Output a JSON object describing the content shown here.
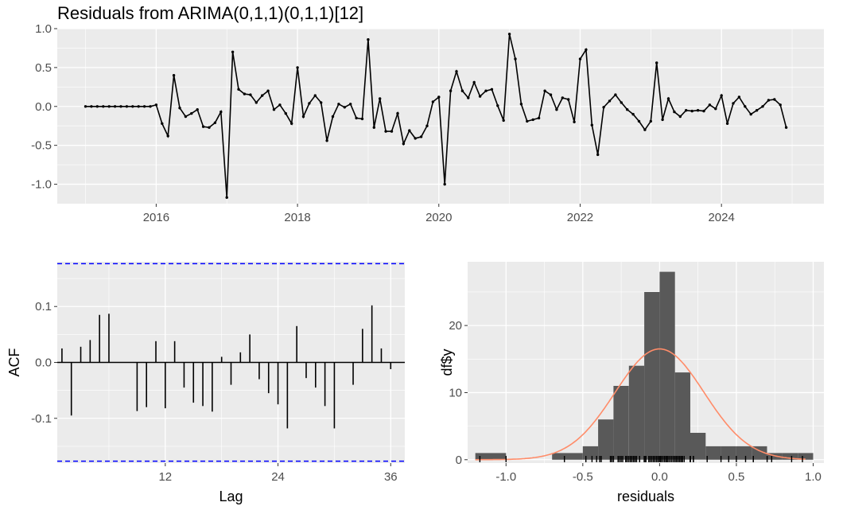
{
  "title": "Residuals from ARIMA(0,1,1)(0,1,1)[12]",
  "colors": {
    "panel": "#EBEBEB",
    "grid": "#FFFFFF",
    "line": "#000000",
    "ci": "#0000FF",
    "bar": "#595959",
    "density": "#FF8C69",
    "axis_text": "#4D4D4D"
  },
  "chart_data": [
    {
      "type": "line",
      "title": "Residuals from ARIMA(0,1,1)(0,1,1)[12]",
      "xlabel": "",
      "ylabel": "",
      "xlim": [
        2014.6,
        2025.45
      ],
      "ylim": [
        -1.25,
        1.0
      ],
      "x_ticks": [
        2016,
        2018,
        2020,
        2022,
        2024
      ],
      "y_ticks": [
        -1.0,
        -0.5,
        0.0,
        0.5,
        1.0
      ],
      "y_tick_labels": [
        "-1.0",
        "-0.5",
        "0.0",
        "0.5",
        "1.0"
      ],
      "x_start": 2015.0,
      "frequency": 12,
      "values": [
        0,
        0,
        0,
        0,
        0,
        0,
        0,
        0,
        0,
        0,
        0,
        0,
        0.02,
        -0.22,
        -0.38,
        0.4,
        -0.02,
        -0.13,
        -0.09,
        -0.04,
        -0.26,
        -0.27,
        -0.21,
        -0.07,
        -1.17,
        0.7,
        0.22,
        0.16,
        0.15,
        0.05,
        0.14,
        0.2,
        -0.04,
        0.02,
        -0.09,
        -0.22,
        0.5,
        -0.13,
        0.04,
        0.14,
        0.05,
        -0.44,
        -0.13,
        0.03,
        -0.01,
        0.03,
        -0.15,
        -0.16,
        0.86,
        -0.27,
        0.1,
        -0.32,
        -0.32,
        -0.09,
        -0.48,
        -0.31,
        -0.41,
        -0.39,
        -0.25,
        0.06,
        0.12,
        -1.0,
        0.2,
        0.45,
        0.2,
        0.11,
        0.31,
        0.13,
        0.2,
        0.22,
        0.01,
        -0.18,
        0.93,
        0.61,
        0.03,
        -0.19,
        -0.17,
        -0.15,
        0.2,
        0.15,
        -0.04,
        0.11,
        0.09,
        -0.2,
        0.61,
        0.73,
        -0.24,
        -0.62,
        -0.01,
        0.07,
        0.15,
        0.05,
        -0.04,
        -0.1,
        -0.19,
        -0.3,
        -0.19,
        0.56,
        -0.17,
        0.1,
        -0.07,
        -0.13,
        -0.05,
        -0.06,
        -0.05,
        -0.06,
        0.02,
        -0.03,
        0.14,
        -0.22,
        0.04,
        0.12,
        0.0,
        -0.1,
        -0.05,
        0.0,
        0.08,
        0.09,
        0.02,
        -0.27
      ]
    },
    {
      "type": "bar",
      "subtype": "acf",
      "xlabel": "Lag",
      "ylabel": "ACF",
      "x_ticks": [
        12,
        24,
        36
      ],
      "xlim": [
        0.5,
        37.5
      ],
      "ylim": [
        -0.18,
        0.18
      ],
      "y_ticks": [
        -0.1,
        0.0,
        0.1
      ],
      "y_tick_labels": [
        "-0.1",
        "0.0",
        "0.1"
      ],
      "ci": 0.1766,
      "lags": [
        1,
        2,
        3,
        4,
        5,
        6,
        7,
        8,
        9,
        10,
        11,
        12,
        13,
        14,
        15,
        16,
        17,
        18,
        19,
        20,
        21,
        22,
        23,
        24,
        25,
        26,
        27,
        28,
        29,
        30,
        31,
        32,
        33,
        34,
        35,
        36
      ],
      "values": [
        0.025,
        -0.095,
        0.028,
        0.04,
        0.085,
        0.087,
        0.0,
        0.0,
        -0.087,
        -0.08,
        0.038,
        -0.082,
        0.038,
        -0.045,
        -0.072,
        -0.078,
        -0.088,
        0.01,
        -0.04,
        0.018,
        0.05,
        -0.03,
        -0.055,
        -0.075,
        -0.118,
        0.065,
        -0.028,
        -0.045,
        -0.078,
        -0.118,
        0.0,
        -0.04,
        0.06,
        0.102,
        0.025,
        -0.012
      ]
    },
    {
      "type": "bar",
      "subtype": "histogram",
      "xlabel": "residuals",
      "ylabel": "df$y",
      "xlim": [
        -1.25,
        1.07
      ],
      "ylim": [
        -0.5,
        29.5
      ],
      "x_ticks": [
        -1.0,
        -0.5,
        0.0,
        0.5,
        1.0
      ],
      "x_tick_labels": [
        "-1.0",
        "-0.5",
        "0.0",
        "0.5",
        "1.0"
      ],
      "y_ticks": [
        0,
        10,
        20
      ],
      "bins": [
        {
          "start": -1.2,
          "end": -1.1,
          "count": 1
        },
        {
          "start": -1.1,
          "end": -1.0,
          "count": 1
        },
        {
          "start": -1.0,
          "end": -0.9,
          "count": 0
        },
        {
          "start": -0.9,
          "end": -0.8,
          "count": 0
        },
        {
          "start": -0.8,
          "end": -0.7,
          "count": 0
        },
        {
          "start": -0.7,
          "end": -0.6,
          "count": 1
        },
        {
          "start": -0.6,
          "end": -0.5,
          "count": 1
        },
        {
          "start": -0.5,
          "end": -0.4,
          "count": 2
        },
        {
          "start": -0.4,
          "end": -0.3,
          "count": 6
        },
        {
          "start": -0.3,
          "end": -0.2,
          "count": 11
        },
        {
          "start": -0.2,
          "end": -0.1,
          "count": 14
        },
        {
          "start": -0.1,
          "end": 0.0,
          "count": 25
        },
        {
          "start": 0.0,
          "end": 0.1,
          "count": 28
        },
        {
          "start": 0.1,
          "end": 0.2,
          "count": 13
        },
        {
          "start": 0.2,
          "end": 0.3,
          "count": 4
        },
        {
          "start": 0.3,
          "end": 0.4,
          "count": 2
        },
        {
          "start": 0.4,
          "end": 0.5,
          "count": 2
        },
        {
          "start": 0.5,
          "end": 0.6,
          "count": 2
        },
        {
          "start": 0.6,
          "end": 0.7,
          "count": 2
        },
        {
          "start": 0.7,
          "end": 0.8,
          "count": 1
        },
        {
          "start": 0.8,
          "end": 0.9,
          "count": 1
        },
        {
          "start": 0.9,
          "end": 1.0,
          "count": 1
        }
      ],
      "density": {
        "mean": 0.0,
        "sd": 0.29,
        "n": 120,
        "binwidth": 0.1
      }
    }
  ]
}
